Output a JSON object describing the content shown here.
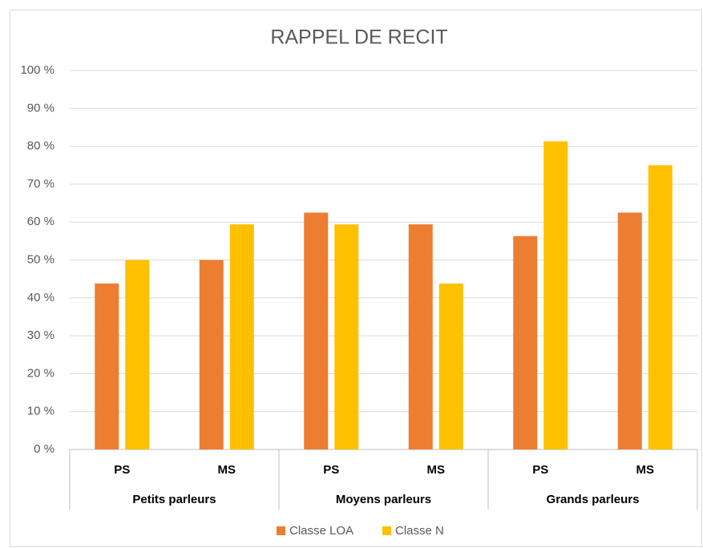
{
  "chart_data": {
    "type": "bar",
    "title": "RAPPEL DE RECIT",
    "categories": [
      "PS",
      "MS",
      "PS",
      "MS",
      "PS",
      "MS"
    ],
    "groups": [
      "Petits parleurs",
      "Moyens parleurs",
      "Grands parleurs"
    ],
    "series": [
      {
        "name": "Classe LOA",
        "color": "#ed7d31",
        "values": [
          43.8,
          50,
          62.5,
          59.4,
          56.3,
          62.5
        ]
      },
      {
        "name": "Classe N",
        "color": "#ffc000",
        "values": [
          50,
          59.4,
          59.4,
          43.8,
          81.3,
          75
        ]
      }
    ],
    "ylim": [
      0,
      100
    ],
    "yticks": [
      {
        "value": 0,
        "label": "0 %"
      },
      {
        "value": 10,
        "label": "10 %"
      },
      {
        "value": 20,
        "label": "20 %"
      },
      {
        "value": 30,
        "label": "30 %"
      },
      {
        "value": 40,
        "label": "40 %"
      },
      {
        "value": 50,
        "label": "50 %"
      },
      {
        "value": 60,
        "label": "60 %"
      },
      {
        "value": 70,
        "label": "70 %"
      },
      {
        "value": 80,
        "label": "80 %"
      },
      {
        "value": 90,
        "label": "90 %"
      },
      {
        "value": 100,
        "label": "100 %"
      }
    ],
    "grid": true,
    "legend": "bottom"
  }
}
